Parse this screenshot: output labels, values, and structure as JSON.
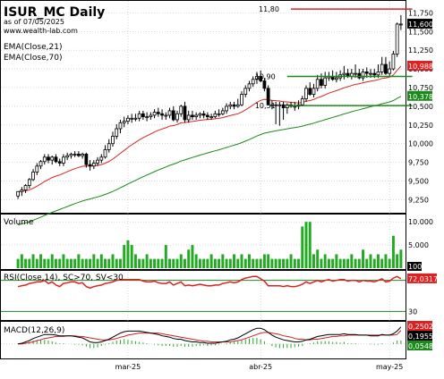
{
  "header": {
    "title": "ISUR_MC Daily",
    "as_of": "as of 07/05/2025",
    "website": "www.wealth-lab.com",
    "indicator1": "EMA(Close,21)",
    "indicator2": "EMA(Close,70)"
  },
  "colors": {
    "bull_body": "#ffffff",
    "bear_body": "#000000",
    "ema21": "#e02020",
    "ema70": "#1a8a1a",
    "volume": "#22aa22",
    "rsi": "#e02020",
    "rsi_lines": "#1a8a1a",
    "macd": "#000000",
    "macd_signal": "#cc2222",
    "macd_hist": "#22aa22",
    "resistance_line": "#e02020",
    "support_line": "#1a8a1a",
    "grid": "#c0c0c0",
    "frame": "#000000"
  },
  "price_pane": {
    "annotations": [
      "11,80",
      "10,90",
      "10,51"
    ],
    "badges": [
      {
        "text": "11,600",
        "bg": "#000000",
        "fg": "#ffffff"
      },
      {
        "text": "10,988",
        "bg": "#e02020",
        "fg": "#ffffff"
      },
      {
        "text": "10,378",
        "bg": "#1a8a1a",
        "fg": "#ffffff"
      }
    ]
  },
  "volume_pane": {
    "label": "Volume",
    "badge": "100"
  },
  "rsi_pane": {
    "label": "RSI(Close,14), SC>70, SV<30",
    "badge": "72,0317"
  },
  "macd_pane": {
    "label": "MACD(12,26,9)",
    "badges": [
      {
        "text": "0,2502",
        "bg": "#e02020",
        "fg": "#ffffff"
      },
      {
        "text": "0,1955",
        "bg": "#000000",
        "fg": "#ffffff"
      },
      {
        "text": "0,0548",
        "bg": "#1a8a1a",
        "fg": "#ffffff"
      }
    ]
  },
  "chart_data": [
    {
      "type": "candlestick",
      "title": "ISUR_MC Daily",
      "ylim": [
        9.1,
        11.85
      ],
      "y_ticks": [
        "11,750",
        "11,500",
        "11,250",
        "11,000",
        "10,750",
        "10,500",
        "10,250",
        "10,000",
        "9,750",
        "9,500",
        "9,250"
      ],
      "y_tick_values": [
        11.75,
        11.5,
        11.25,
        11.0,
        10.75,
        10.5,
        10.25,
        10.0,
        9.75,
        9.5,
        9.25
      ],
      "x_ticks": [
        "mar-25",
        "abr-25",
        "may-25"
      ],
      "x_tick_index": [
        29,
        64,
        98
      ],
      "reference_lines": [
        {
          "value": 11.8,
          "label": "11,80",
          "from_index": 72,
          "to_index": 104,
          "color": "red"
        },
        {
          "value": 10.9,
          "label": "10,90",
          "from_index": 71,
          "to_index": 104,
          "color": "green"
        },
        {
          "value": 10.51,
          "label": "10,51",
          "from_index": 71,
          "to_index": 104,
          "color": "green"
        }
      ],
      "series": [
        {
          "name": "open",
          "values": [
            9.3,
            9.36,
            9.38,
            9.44,
            9.52,
            9.62,
            9.7,
            9.76,
            9.82,
            9.78,
            9.82,
            9.76,
            9.74,
            9.82,
            9.84,
            9.86,
            9.86,
            9.84,
            9.86,
            9.72,
            9.7,
            9.74,
            9.78,
            9.82,
            9.92,
            10.0,
            10.1,
            10.2,
            10.28,
            10.3,
            10.34,
            10.34,
            10.34,
            10.4,
            10.36,
            10.36,
            10.38,
            10.42,
            10.4,
            10.38,
            10.38,
            10.44,
            10.32,
            10.4,
            10.5,
            10.32,
            10.38,
            10.36,
            10.38,
            10.4,
            10.38,
            10.36,
            10.36,
            10.4,
            10.4,
            10.44,
            10.5,
            10.52,
            10.5,
            10.52,
            10.66,
            10.74,
            10.8,
            10.86,
            10.9,
            10.84,
            10.74,
            10.52,
            10.52,
            10.52,
            10.52,
            10.48,
            10.52,
            10.5,
            10.5,
            10.52,
            10.6,
            10.74,
            10.66,
            10.74,
            10.86,
            10.78,
            10.88,
            10.9,
            10.86,
            10.88,
            10.92,
            10.94,
            10.9,
            10.94,
            10.94,
            10.88,
            10.96,
            10.94,
            10.94,
            10.92,
            10.96,
            11.06,
            10.94,
            11.0,
            11.2,
            11.6
          ]
        },
        {
          "name": "high",
          "values": [
            9.36,
            9.42,
            9.46,
            9.54,
            9.66,
            9.74,
            9.78,
            9.86,
            9.86,
            9.84,
            9.86,
            9.8,
            9.86,
            9.88,
            9.88,
            9.9,
            9.9,
            9.88,
            9.88,
            9.78,
            9.78,
            9.82,
            9.86,
            9.98,
            10.06,
            10.16,
            10.26,
            10.32,
            10.36,
            10.38,
            10.4,
            10.4,
            10.44,
            10.44,
            10.42,
            10.42,
            10.46,
            10.48,
            10.46,
            10.42,
            10.48,
            10.5,
            10.44,
            10.52,
            10.56,
            10.44,
            10.44,
            10.42,
            10.42,
            10.44,
            10.42,
            10.4,
            10.44,
            10.46,
            10.48,
            10.54,
            10.56,
            10.56,
            10.6,
            10.7,
            10.78,
            10.84,
            10.9,
            10.96,
            10.98,
            10.88,
            10.78,
            10.58,
            10.56,
            10.56,
            10.56,
            10.54,
            10.56,
            10.56,
            10.58,
            10.64,
            10.78,
            10.82,
            10.8,
            10.92,
            10.94,
            10.96,
            10.96,
            10.98,
            10.96,
            10.98,
            11.04,
            11.0,
            11.0,
            11.06,
            11.0,
            11.0,
            11.02,
            11.0,
            11.0,
            11.06,
            11.16,
            11.16,
            11.1,
            11.24,
            11.62,
            11.72
          ]
        },
        {
          "name": "low",
          "values": [
            9.26,
            9.3,
            9.34,
            9.4,
            9.5,
            9.58,
            9.66,
            9.72,
            9.74,
            9.72,
            9.74,
            9.7,
            9.7,
            9.78,
            9.8,
            9.82,
            9.82,
            9.8,
            9.68,
            9.64,
            9.66,
            9.7,
            9.74,
            9.8,
            9.88,
            9.96,
            10.06,
            10.14,
            10.22,
            10.26,
            10.28,
            10.3,
            10.3,
            10.32,
            10.3,
            10.32,
            10.34,
            10.36,
            10.32,
            10.32,
            10.34,
            10.3,
            10.28,
            10.36,
            10.28,
            10.28,
            10.32,
            10.32,
            10.34,
            10.34,
            10.32,
            10.32,
            10.34,
            10.36,
            10.38,
            10.4,
            10.46,
            10.46,
            10.48,
            10.5,
            10.62,
            10.7,
            10.76,
            10.8,
            10.82,
            10.7,
            10.52,
            10.46,
            10.26,
            10.24,
            10.32,
            10.4,
            10.48,
            10.44,
            10.46,
            10.5,
            10.56,
            10.64,
            10.62,
            10.7,
            10.74,
            10.74,
            10.84,
            10.84,
            10.82,
            10.84,
            10.86,
            10.88,
            10.86,
            10.88,
            10.86,
            10.84,
            10.88,
            10.88,
            10.88,
            10.88,
            10.92,
            10.92,
            10.9,
            10.98,
            11.16,
            11.52
          ]
        },
        {
          "name": "close",
          "values": [
            9.36,
            9.38,
            9.44,
            9.52,
            9.62,
            9.7,
            9.76,
            9.82,
            9.78,
            9.82,
            9.76,
            9.74,
            9.82,
            9.84,
            9.86,
            9.86,
            9.84,
            9.86,
            9.72,
            9.7,
            9.74,
            9.78,
            9.82,
            9.92,
            10.0,
            10.1,
            10.2,
            10.28,
            10.3,
            10.34,
            10.34,
            10.34,
            10.4,
            10.36,
            10.36,
            10.38,
            10.42,
            10.4,
            10.38,
            10.38,
            10.44,
            10.32,
            10.4,
            10.5,
            10.32,
            10.38,
            10.36,
            10.38,
            10.4,
            10.38,
            10.36,
            10.36,
            10.4,
            10.4,
            10.44,
            10.5,
            10.52,
            10.5,
            10.52,
            10.66,
            10.74,
            10.8,
            10.86,
            10.9,
            10.84,
            10.74,
            10.52,
            10.52,
            10.52,
            10.52,
            10.48,
            10.52,
            10.5,
            10.5,
            10.52,
            10.6,
            10.74,
            10.66,
            10.74,
            10.86,
            10.78,
            10.88,
            10.9,
            10.86,
            10.88,
            10.92,
            10.94,
            10.9,
            10.94,
            10.94,
            10.88,
            10.96,
            10.94,
            10.94,
            10.92,
            10.96,
            11.06,
            10.94,
            11.0,
            11.2,
            11.6,
            11.6
          ]
        }
      ]
    },
    {
      "type": "bar",
      "title": "Volume",
      "values": [
        2,
        3,
        2,
        2,
        3,
        2,
        3,
        2,
        2,
        3,
        2,
        2,
        3,
        2,
        2,
        2,
        3,
        2,
        2,
        2,
        3,
        2,
        3,
        2,
        2,
        3,
        2,
        2,
        5,
        6,
        5,
        3,
        2,
        2,
        3,
        2,
        2,
        2,
        2,
        5,
        2,
        2,
        2,
        3,
        2,
        4,
        5,
        3,
        2,
        2,
        2,
        3,
        2,
        2,
        3,
        2,
        2,
        3,
        2,
        3,
        2,
        3,
        2,
        2,
        2,
        3,
        3,
        2,
        2,
        2,
        2,
        2,
        3,
        2,
        2,
        9,
        10,
        10,
        3,
        4,
        2,
        3,
        2,
        2,
        3,
        2,
        2,
        2,
        3,
        2,
        2,
        4,
        2,
        3,
        2,
        3,
        2,
        3,
        2,
        7,
        3,
        4
      ],
      "ylim": [
        0,
        11
      ],
      "y_ticks": [
        "10.000",
        "5.000"
      ]
    },
    {
      "type": "line",
      "title": "RSI(Close,14), SC>70, SV<30",
      "values": [
        62,
        63,
        64,
        66,
        67,
        68,
        68,
        70,
        66,
        68,
        64,
        62,
        66,
        67,
        68,
        68,
        66,
        67,
        62,
        60,
        62,
        63,
        64,
        66,
        67,
        68,
        70,
        71,
        71,
        71,
        71,
        71,
        71,
        69,
        68,
        68,
        69,
        67,
        66,
        66,
        68,
        64,
        66,
        68,
        63,
        64,
        63,
        64,
        65,
        64,
        63,
        63,
        64,
        64,
        66,
        67,
        68,
        67,
        68,
        71,
        73,
        74,
        75,
        75,
        72,
        69,
        63,
        63,
        63,
        63,
        62,
        63,
        62,
        62,
        63,
        65,
        68,
        66,
        68,
        70,
        68,
        70,
        71,
        69,
        70,
        71,
        71,
        69,
        70,
        70,
        68,
        70,
        69,
        69,
        68,
        70,
        72,
        68,
        69,
        73,
        75,
        72
      ],
      "ylim": [
        20,
        80
      ],
      "y_ticks": [
        "70",
        "30"
      ],
      "thresholds": [
        70,
        30
      ]
    },
    {
      "type": "line",
      "title": "MACD(12,26,9)",
      "series": [
        {
          "name": "MACD",
          "values": [
            0.0,
            0.01,
            0.03,
            0.05,
            0.08,
            0.1,
            0.12,
            0.14,
            0.14,
            0.14,
            0.13,
            0.12,
            0.12,
            0.12,
            0.12,
            0.11,
            0.1,
            0.09,
            0.06,
            0.03,
            0.02,
            0.02,
            0.03,
            0.05,
            0.07,
            0.1,
            0.13,
            0.16,
            0.18,
            0.19,
            0.19,
            0.19,
            0.19,
            0.18,
            0.17,
            0.16,
            0.15,
            0.14,
            0.12,
            0.11,
            0.1,
            0.08,
            0.07,
            0.07,
            0.05,
            0.04,
            0.03,
            0.03,
            0.02,
            0.02,
            0.01,
            0.01,
            0.01,
            0.02,
            0.03,
            0.04,
            0.06,
            0.07,
            0.09,
            0.12,
            0.15,
            0.18,
            0.21,
            0.23,
            0.23,
            0.21,
            0.17,
            0.13,
            0.1,
            0.08,
            0.06,
            0.05,
            0.04,
            0.03,
            0.03,
            0.04,
            0.06,
            0.07,
            0.09,
            0.11,
            0.12,
            0.13,
            0.14,
            0.14,
            0.14,
            0.14,
            0.15,
            0.14,
            0.14,
            0.14,
            0.13,
            0.13,
            0.13,
            0.12,
            0.12,
            0.12,
            0.14,
            0.13,
            0.13,
            0.15,
            0.19,
            0.25
          ]
        },
        {
          "name": "Signal",
          "values": [
            0.0,
            0.0,
            0.01,
            0.02,
            0.03,
            0.05,
            0.06,
            0.08,
            0.09,
            0.1,
            0.11,
            0.11,
            0.11,
            0.12,
            0.12,
            0.12,
            0.11,
            0.11,
            0.1,
            0.09,
            0.08,
            0.07,
            0.06,
            0.06,
            0.06,
            0.07,
            0.08,
            0.1,
            0.11,
            0.13,
            0.14,
            0.15,
            0.16,
            0.16,
            0.16,
            0.16,
            0.16,
            0.16,
            0.15,
            0.14,
            0.13,
            0.12,
            0.11,
            0.1,
            0.09,
            0.08,
            0.07,
            0.06,
            0.05,
            0.04,
            0.04,
            0.03,
            0.03,
            0.03,
            0.03,
            0.03,
            0.03,
            0.04,
            0.05,
            0.06,
            0.08,
            0.1,
            0.12,
            0.14,
            0.16,
            0.17,
            0.17,
            0.16,
            0.15,
            0.14,
            0.12,
            0.11,
            0.1,
            0.08,
            0.07,
            0.07,
            0.06,
            0.06,
            0.07,
            0.07,
            0.08,
            0.09,
            0.1,
            0.11,
            0.11,
            0.12,
            0.12,
            0.13,
            0.13,
            0.13,
            0.13,
            0.13,
            0.13,
            0.13,
            0.13,
            0.13,
            0.13,
            0.13,
            0.13,
            0.13,
            0.14,
            0.2
          ]
        }
      ],
      "ylim": [
        -0.2,
        0.3
      ]
    }
  ]
}
